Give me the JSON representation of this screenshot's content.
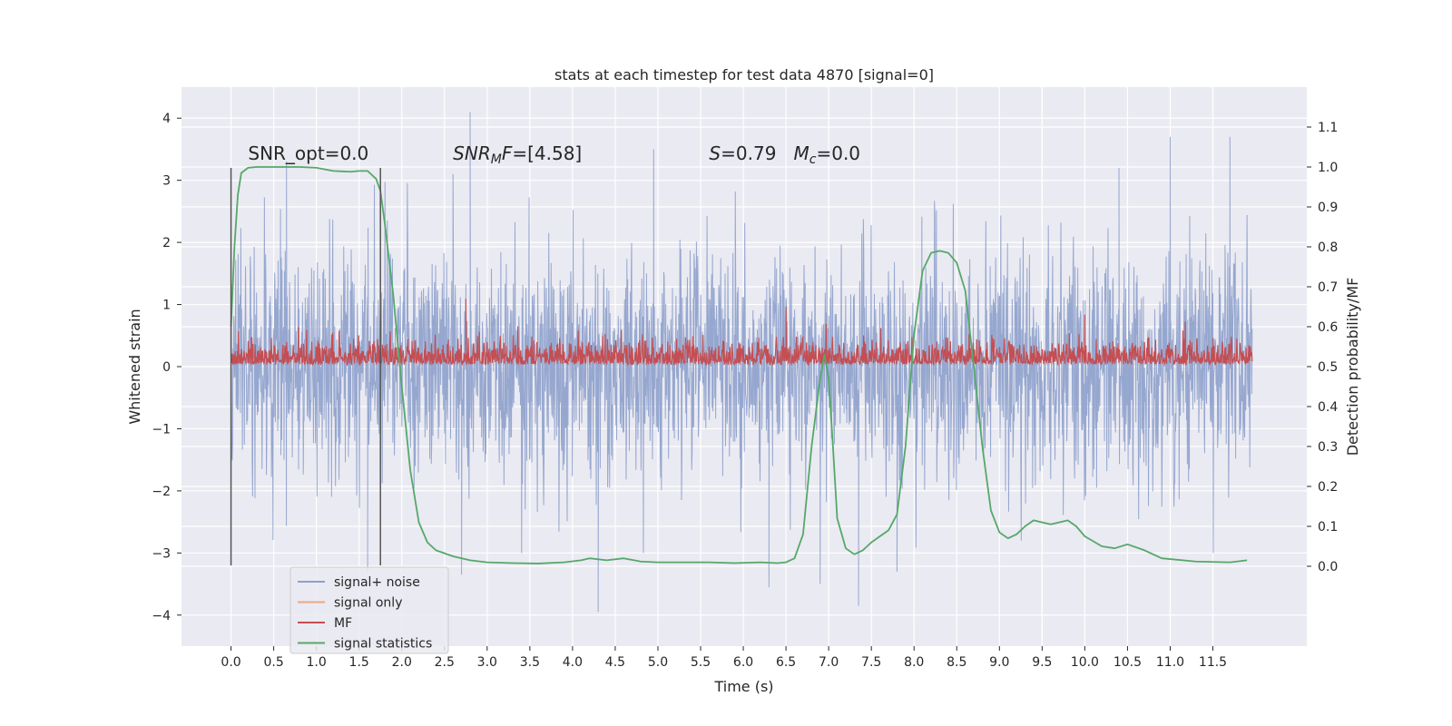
{
  "chart_data": {
    "type": "line",
    "title": "stats at each timestep for test data 4870 [signal=0]",
    "xlabel": "Time (s)",
    "ylabel_left": "Whitened strain",
    "ylabel_right": "Detection probability/MF",
    "xlim": [
      -0.58,
      12.6
    ],
    "ylim_left": [
      -4.5,
      4.5
    ],
    "ylim_right": [
      -0.2,
      1.2
    ],
    "x_ticks": [
      0.0,
      0.5,
      1.0,
      1.5,
      2.0,
      2.5,
      3.0,
      3.5,
      4.0,
      4.5,
      5.0,
      5.5,
      6.0,
      6.5,
      7.0,
      7.5,
      8.0,
      8.5,
      9.0,
      9.5,
      10.0,
      10.5,
      11.0,
      11.5
    ],
    "x_tick_labels": [
      "0.0",
      "0.5",
      "1.0",
      "1.5",
      "2.0",
      "2.5",
      "3.0",
      "3.5",
      "4.0",
      "4.5",
      "5.0",
      "5.5",
      "6.0",
      "6.5",
      "7.0",
      "7.5",
      "8.0",
      "8.5",
      "9.0",
      "9.5",
      "10.0",
      "10.5",
      "11.0",
      "11.5"
    ],
    "y_left_ticks": [
      -4,
      -3,
      -2,
      -1,
      0,
      1,
      2,
      3,
      4
    ],
    "y_left_tick_labels": [
      "−4",
      "−3",
      "−2",
      "−1",
      "0",
      "1",
      "2",
      "3",
      "4"
    ],
    "y_right_ticks": [
      0.0,
      0.1,
      0.2,
      0.3,
      0.4,
      0.5,
      0.6,
      0.7,
      0.8,
      0.9,
      1.0,
      1.1
    ],
    "y_right_tick_labels": [
      "0.0",
      "0.1",
      "0.2",
      "0.3",
      "0.4",
      "0.5",
      "0.6",
      "0.7",
      "0.8",
      "0.9",
      "1.0",
      "1.1"
    ],
    "grid": true,
    "legend_position": "bottom-left",
    "annotations": [
      {
        "text": "SNR_opt=0.0",
        "x": 0.2,
        "y": 3.3
      },
      {
        "text": "SNR_MF=[4.58]",
        "x": 2.6,
        "y": 3.3
      },
      {
        "text": "S=0.79   M_c=0.0",
        "x": 5.6,
        "y": 3.3
      }
    ],
    "vlines": [
      {
        "x": 0.0,
        "ymin": -3.2,
        "ymax": 3.2
      },
      {
        "x": 1.75,
        "ymin": -3.2,
        "ymax": 3.2
      }
    ],
    "series": [
      {
        "name": "signal+ noise",
        "axis": "left",
        "color": "#8da0cb",
        "style": "noise",
        "x_range": [
          0.0,
          11.96
        ],
        "sigma": 1.0,
        "peaks": [
          {
            "x": 2.8,
            "y": 4.1
          },
          {
            "x": 2.6,
            "y": 3.1
          },
          {
            "x": 0.65,
            "y": 3.3
          },
          {
            "x": 4.95,
            "y": 3.5
          },
          {
            "x": 11.0,
            "y": 3.7
          },
          {
            "x": 11.7,
            "y": 3.7
          },
          {
            "x": 4.3,
            "y": -3.95
          },
          {
            "x": 7.35,
            "y": -3.85
          },
          {
            "x": 6.3,
            "y": -3.55
          },
          {
            "x": 6.9,
            "y": -3.5
          },
          {
            "x": 2.7,
            "y": -3.35
          },
          {
            "x": 1.6,
            "y": -3.3
          },
          {
            "x": 10.4,
            "y": 3.2
          },
          {
            "x": 7.8,
            "y": -3.3
          }
        ]
      },
      {
        "name": "signal only",
        "axis": "left",
        "color": "#e8a88a",
        "style": "flat",
        "values": []
      },
      {
        "name": "MF",
        "axis": "right",
        "color": "#c44e52",
        "style": "noise",
        "x_range": [
          0.0,
          11.96
        ],
        "center": 0.52,
        "spread": 0.025,
        "peaks": [
          {
            "x": 2.75,
            "y": 0.67
          },
          {
            "x": 6.5,
            "y": 0.65
          },
          {
            "x": 10.0,
            "y": 0.63
          }
        ]
      },
      {
        "name": "signal statistics",
        "axis": "right",
        "color": "#55a868",
        "style": "line",
        "x": [
          0.0,
          0.04,
          0.08,
          0.12,
          0.2,
          0.3,
          0.4,
          0.6,
          0.8,
          1.0,
          1.2,
          1.4,
          1.5,
          1.6,
          1.7,
          1.75,
          1.8,
          1.9,
          2.0,
          2.1,
          2.2,
          2.3,
          2.4,
          2.6,
          2.8,
          3.0,
          3.3,
          3.6,
          3.9,
          4.1,
          4.2,
          4.4,
          4.6,
          4.8,
          5.0,
          5.3,
          5.6,
          5.9,
          6.2,
          6.4,
          6.5,
          6.6,
          6.7,
          6.8,
          6.9,
          6.95,
          7.0,
          7.05,
          7.1,
          7.2,
          7.3,
          7.4,
          7.5,
          7.6,
          7.7,
          7.8,
          7.9,
          8.0,
          8.1,
          8.2,
          8.3,
          8.4,
          8.5,
          8.6,
          8.7,
          8.8,
          8.9,
          9.0,
          9.1,
          9.2,
          9.3,
          9.4,
          9.5,
          9.6,
          9.7,
          9.8,
          9.9,
          10.0,
          10.2,
          10.35,
          10.5,
          10.7,
          10.9,
          11.3,
          11.7,
          11.9
        ],
        "values": [
          0.6,
          0.8,
          0.93,
          0.985,
          0.998,
          1.0,
          1.0,
          1.0,
          1.0,
          0.998,
          0.99,
          0.988,
          0.99,
          0.99,
          0.97,
          0.94,
          0.86,
          0.68,
          0.45,
          0.24,
          0.11,
          0.06,
          0.04,
          0.025,
          0.015,
          0.01,
          0.008,
          0.007,
          0.01,
          0.015,
          0.02,
          0.015,
          0.02,
          0.012,
          0.01,
          0.01,
          0.01,
          0.008,
          0.01,
          0.008,
          0.01,
          0.02,
          0.08,
          0.3,
          0.47,
          0.53,
          0.47,
          0.3,
          0.12,
          0.045,
          0.03,
          0.04,
          0.06,
          0.075,
          0.09,
          0.13,
          0.3,
          0.58,
          0.74,
          0.785,
          0.79,
          0.785,
          0.76,
          0.69,
          0.5,
          0.3,
          0.14,
          0.085,
          0.07,
          0.08,
          0.1,
          0.115,
          0.11,
          0.105,
          0.11,
          0.115,
          0.1,
          0.075,
          0.05,
          0.045,
          0.055,
          0.04,
          0.02,
          0.012,
          0.01,
          0.015
        ]
      }
    ]
  }
}
